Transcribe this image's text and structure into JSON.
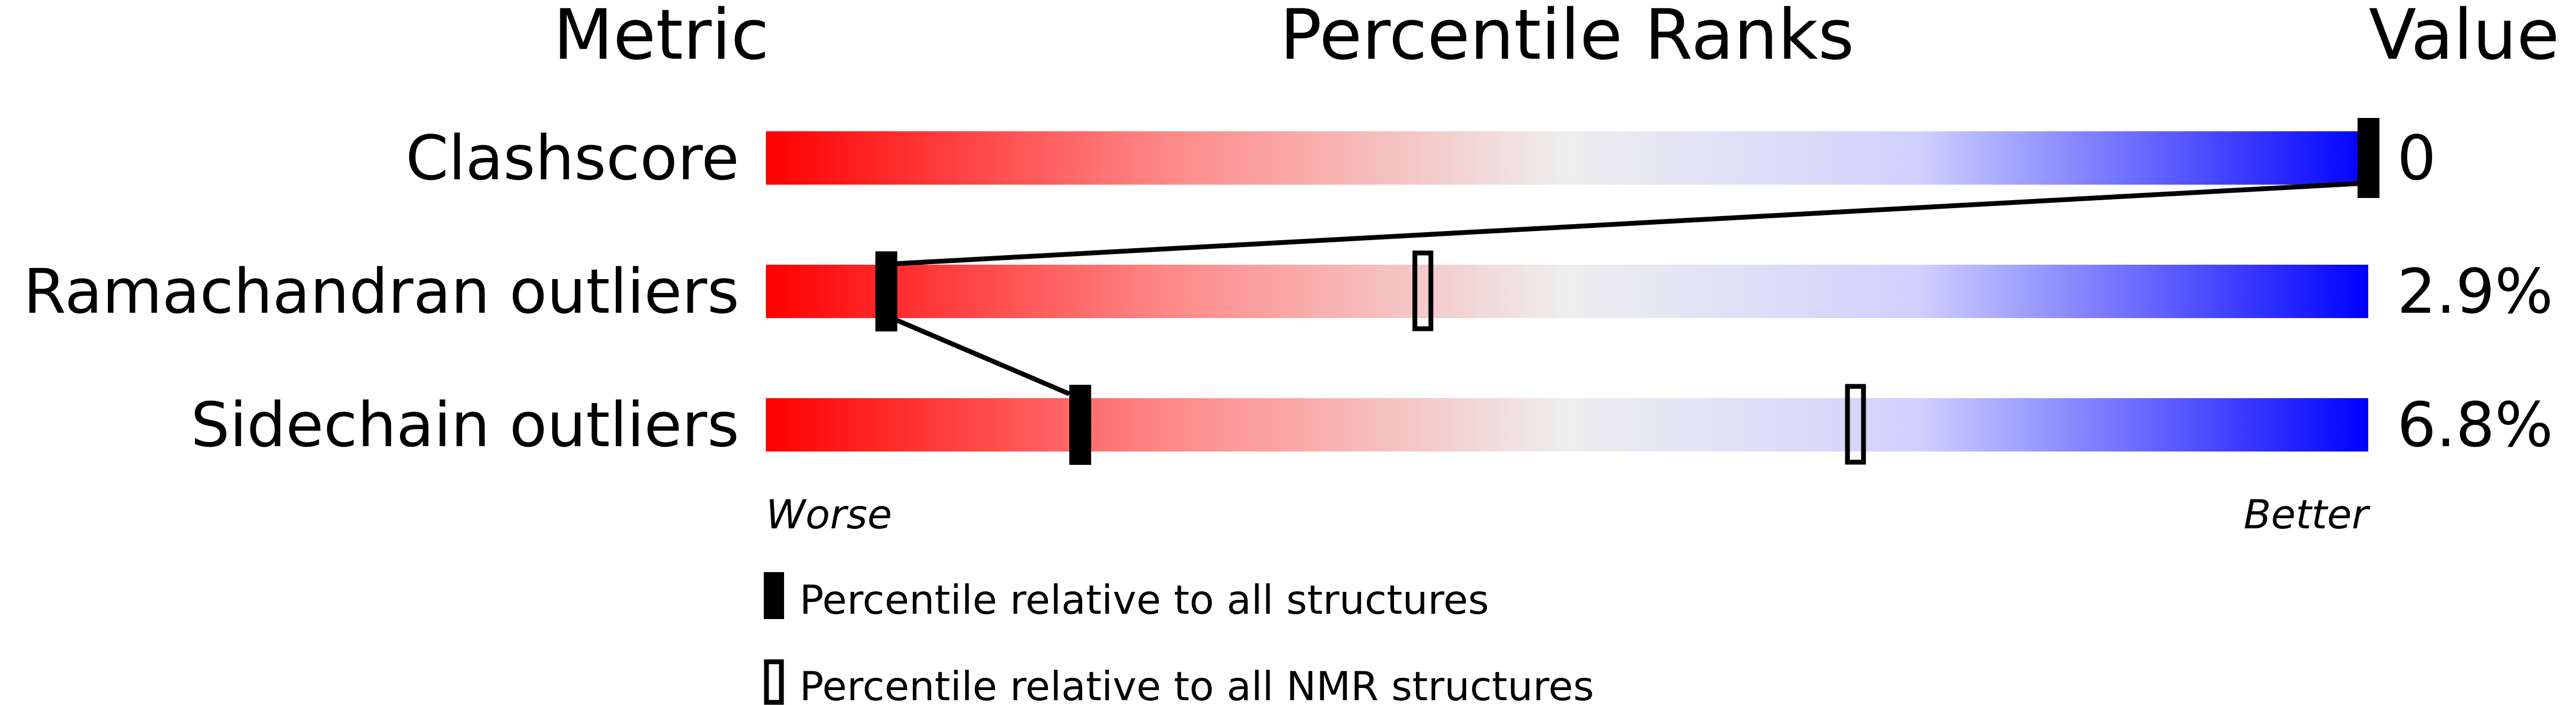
{
  "chart_data": {
    "type": "bar",
    "headers": {
      "metric": "Metric",
      "percentile": "Percentile Ranks",
      "value": "Value"
    },
    "metrics": [
      {
        "name": "Clashscore",
        "value": "0",
        "percentile_all": 100,
        "percentile_nmr": null
      },
      {
        "name": "Ramachandran outliers",
        "value": "2.9%",
        "percentile_all": 7.5,
        "percentile_nmr": 41
      },
      {
        "name": "Sidechain outliers",
        "value": "6.8%",
        "percentile_all": 19.6,
        "percentile_nmr": 68
      }
    ],
    "axis": {
      "left_label": "Worse",
      "right_label": "Better",
      "range": [
        0,
        100
      ]
    },
    "legend": [
      {
        "marker": "filled",
        "label": "Percentile relative to all structures"
      },
      {
        "marker": "outline",
        "label": "Percentile relative to all NMR structures"
      }
    ],
    "colors": {
      "worse": "#ff0000",
      "middle": "#eeeeee",
      "better": "#0000ff",
      "marker": "#000000"
    }
  }
}
